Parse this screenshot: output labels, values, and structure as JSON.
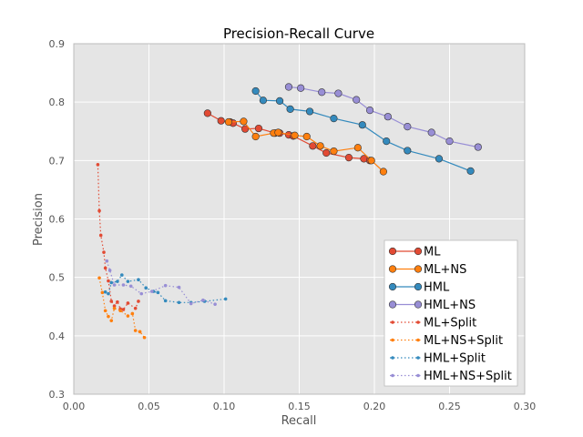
{
  "chart_data": {
    "type": "line",
    "title": "Precision-Recall Curve",
    "xlabel": "Recall",
    "ylabel": "Precision",
    "xlim": [
      0.0,
      0.3
    ],
    "ylim": [
      0.3,
      0.9
    ],
    "xticks": [
      0.0,
      0.05,
      0.1,
      0.15,
      0.2,
      0.25,
      0.3
    ],
    "yticks": [
      0.3,
      0.4,
      0.5,
      0.6,
      0.7,
      0.8,
      0.9
    ],
    "xtick_labels": [
      "0.00",
      "0.05",
      "0.10",
      "0.15",
      "0.20",
      "0.25",
      "0.30"
    ],
    "ytick_labels": [
      "0.3",
      "0.4",
      "0.5",
      "0.6",
      "0.7",
      "0.8",
      "0.9"
    ],
    "grid": true,
    "background": "#e5e5e5",
    "legend_position": "bottom-right",
    "series": [
      {
        "name": "ML",
        "color": "#e24a33",
        "style": "solid",
        "marker": "large",
        "x": [
          0.089,
          0.098,
          0.104,
          0.106,
          0.114,
          0.123,
          0.134,
          0.137,
          0.143,
          0.146,
          0.159,
          0.168,
          0.183,
          0.193,
          0.197
        ],
        "y": [
          0.781,
          0.768,
          0.766,
          0.764,
          0.754,
          0.755,
          0.747,
          0.747,
          0.744,
          0.742,
          0.725,
          0.713,
          0.705,
          0.703,
          0.7
        ]
      },
      {
        "name": "ML+NS",
        "color": "#ff7f0e",
        "style": "solid",
        "marker": "large",
        "x": [
          0.103,
          0.113,
          0.121,
          0.133,
          0.136,
          0.147,
          0.155,
          0.164,
          0.173,
          0.189,
          0.198,
          0.206
        ],
        "y": [
          0.766,
          0.767,
          0.741,
          0.747,
          0.748,
          0.743,
          0.741,
          0.725,
          0.716,
          0.722,
          0.7,
          0.681
        ]
      },
      {
        "name": "HML",
        "color": "#348abd",
        "style": "solid",
        "marker": "large",
        "x": [
          0.121,
          0.126,
          0.137,
          0.144,
          0.157,
          0.173,
          0.192,
          0.208,
          0.222,
          0.243,
          0.264
        ],
        "y": [
          0.819,
          0.803,
          0.802,
          0.788,
          0.784,
          0.772,
          0.761,
          0.733,
          0.717,
          0.703,
          0.682
        ]
      },
      {
        "name": "HML+NS",
        "color": "#988ed5",
        "style": "solid",
        "marker": "large",
        "x": [
          0.143,
          0.151,
          0.165,
          0.176,
          0.188,
          0.197,
          0.209,
          0.222,
          0.238,
          0.25,
          0.269
        ],
        "y": [
          0.826,
          0.824,
          0.817,
          0.815,
          0.804,
          0.786,
          0.775,
          0.758,
          0.748,
          0.733,
          0.723
        ]
      },
      {
        "name": "ML+Split",
        "color": "#e24a33",
        "style": "dotted",
        "marker": "small",
        "x": [
          0.016,
          0.017,
          0.018,
          0.02,
          0.021,
          0.023,
          0.025,
          0.027,
          0.029,
          0.031,
          0.033,
          0.036,
          0.041,
          0.043
        ],
        "y": [
          0.693,
          0.614,
          0.572,
          0.543,
          0.516,
          0.494,
          0.459,
          0.451,
          0.458,
          0.446,
          0.445,
          0.456,
          0.447,
          0.459
        ]
      },
      {
        "name": "ML+NS+Split",
        "color": "#ff7f0e",
        "style": "dotted",
        "marker": "small",
        "x": [
          0.017,
          0.019,
          0.021,
          0.023,
          0.025,
          0.027,
          0.031,
          0.036,
          0.039,
          0.041,
          0.044,
          0.047
        ],
        "y": [
          0.499,
          0.474,
          0.443,
          0.433,
          0.426,
          0.447,
          0.443,
          0.434,
          0.438,
          0.409,
          0.407,
          0.397
        ]
      },
      {
        "name": "HML+Split",
        "color": "#348abd",
        "style": "dotted",
        "marker": "small",
        "x": [
          0.021,
          0.023,
          0.025,
          0.029,
          0.032,
          0.036,
          0.043,
          0.048,
          0.053,
          0.056,
          0.061,
          0.07,
          0.078,
          0.087,
          0.101
        ],
        "y": [
          0.475,
          0.472,
          0.491,
          0.493,
          0.504,
          0.493,
          0.496,
          0.482,
          0.476,
          0.474,
          0.46,
          0.457,
          0.457,
          0.459,
          0.463
        ]
      },
      {
        "name": "HML+NS+Split",
        "color": "#988ed5",
        "style": "dotted",
        "marker": "small",
        "x": [
          0.022,
          0.024,
          0.027,
          0.033,
          0.038,
          0.045,
          0.052,
          0.061,
          0.07,
          0.078,
          0.086,
          0.094
        ],
        "y": [
          0.528,
          0.512,
          0.487,
          0.487,
          0.485,
          0.472,
          0.476,
          0.486,
          0.483,
          0.455,
          0.461,
          0.454
        ]
      }
    ]
  }
}
